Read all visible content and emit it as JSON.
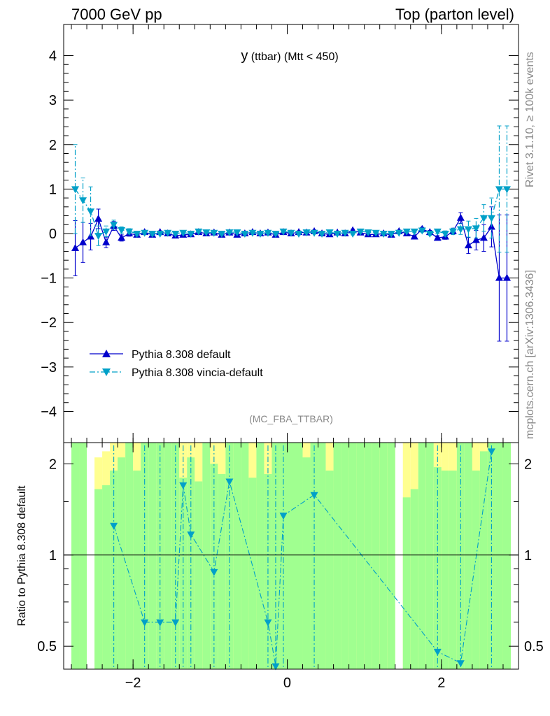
{
  "header": {
    "left": "7000 GeV pp",
    "right": "Top (parton level)"
  },
  "side": {
    "rivet": "Rivet 3.1.10, ≥ 100k events",
    "mcplots": "mcplots.cern.ch [arXiv:1306.3436]"
  },
  "chart_data": [
    {
      "type": "line",
      "title": "y (ttbar) (Mtt < 450)",
      "title_main": "y",
      "title_sub": " (ttbar) (Mtt < 450)",
      "watermark": "(MC_FBA_TTBAR)",
      "xlim": [
        -2.9,
        3.0
      ],
      "ylim": [
        -4.7,
        4.7
      ],
      "x_ticks": [
        -2,
        0,
        2
      ],
      "x_tick_labels": [
        "−2",
        "0",
        "2"
      ],
      "y_ticks": [
        -4,
        -3,
        -2,
        -1,
        0,
        1,
        2,
        3,
        4
      ],
      "y_tick_labels": [
        "−4",
        "−3",
        "−2",
        "−1",
        "0",
        "1",
        "2",
        "3",
        "4"
      ],
      "grid": false,
      "legend_position": "bottom-left",
      "series": [
        {
          "name": "Pythia 8.308 default",
          "color": "#0000cc",
          "marker": "triangle-up",
          "style": "solid",
          "x": [
            -2.75,
            -2.65,
            -2.55,
            -2.45,
            -2.35,
            -2.25,
            -2.15,
            -2.05,
            -1.95,
            -1.85,
            -1.75,
            -1.65,
            -1.55,
            -1.45,
            -1.35,
            -1.25,
            -1.15,
            -1.05,
            -0.95,
            -0.85,
            -0.75,
            -0.65,
            -0.55,
            -0.45,
            -0.35,
            -0.25,
            -0.15,
            -0.05,
            0.05,
            0.15,
            0.25,
            0.35,
            0.45,
            0.55,
            0.65,
            0.75,
            0.85,
            0.95,
            1.05,
            1.15,
            1.25,
            1.35,
            1.45,
            1.55,
            1.65,
            1.75,
            1.85,
            1.95,
            2.05,
            2.15,
            2.25,
            2.35,
            2.45,
            2.55,
            2.65,
            2.75,
            2.85
          ],
          "y": [
            -0.33,
            -0.2,
            -0.07,
            0.33,
            -0.2,
            0.17,
            -0.1,
            0.0,
            -0.03,
            0.03,
            -0.03,
            0.03,
            0.0,
            -0.05,
            -0.03,
            -0.02,
            0.03,
            0.0,
            0.02,
            -0.03,
            0.02,
            -0.03,
            0.0,
            0.03,
            0.0,
            0.02,
            -0.03,
            0.03,
            0.0,
            0.03,
            0.02,
            0.05,
            0.0,
            -0.02,
            0.02,
            0.0,
            0.07,
            0.02,
            -0.02,
            -0.02,
            0.0,
            -0.03,
            0.05,
            0.0,
            -0.07,
            0.1,
            0.03,
            -0.1,
            -0.07,
            0.05,
            0.35,
            -0.27,
            -0.15,
            -0.1,
            0.15,
            -1.0,
            -1.0
          ],
          "yerr": [
            0.62,
            0.45,
            0.3,
            0.22,
            0.12,
            0.1,
            0.07,
            0.06,
            0.05,
            0.04,
            0.04,
            0.03,
            0.03,
            0.03,
            0.03,
            0.03,
            0.03,
            0.03,
            0.03,
            0.03,
            0.03,
            0.03,
            0.03,
            0.03,
            0.03,
            0.03,
            0.03,
            0.03,
            0.03,
            0.03,
            0.03,
            0.03,
            0.03,
            0.03,
            0.03,
            0.03,
            0.03,
            0.03,
            0.03,
            0.03,
            0.03,
            0.03,
            0.03,
            0.03,
            0.03,
            0.04,
            0.04,
            0.05,
            0.06,
            0.07,
            0.12,
            0.18,
            0.22,
            0.3,
            0.45,
            1.42,
            1.42
          ]
        },
        {
          "name": "Pythia 8.308 vincia-default",
          "color": "#00a0c8",
          "marker": "triangle-down",
          "style": "dashdot",
          "x": [
            -2.75,
            -2.65,
            -2.55,
            -2.45,
            -2.35,
            -2.25,
            -2.15,
            -2.05,
            -1.95,
            -1.85,
            -1.75,
            -1.65,
            -1.55,
            -1.45,
            -1.35,
            -1.25,
            -1.15,
            -1.05,
            -0.95,
            -0.85,
            -0.75,
            -0.65,
            -0.55,
            -0.45,
            -0.35,
            -0.25,
            -0.15,
            -0.05,
            0.05,
            0.15,
            0.25,
            0.35,
            0.45,
            0.55,
            0.65,
            0.75,
            0.85,
            0.95,
            1.05,
            1.15,
            1.25,
            1.35,
            1.45,
            1.55,
            1.65,
            1.75,
            1.85,
            1.95,
            2.05,
            2.15,
            2.25,
            2.35,
            2.45,
            2.55,
            2.65,
            2.75,
            2.85
          ],
          "y": [
            1.0,
            0.75,
            0.5,
            -0.05,
            0.05,
            0.2,
            0.08,
            0.05,
            0.0,
            0.02,
            0.0,
            0.0,
            0.02,
            0.0,
            0.02,
            0.0,
            0.05,
            0.03,
            0.02,
            0.0,
            0.03,
            0.03,
            0.0,
            0.02,
            0.0,
            0.02,
            0.0,
            0.05,
            0.02,
            0.0,
            0.03,
            0.02,
            0.0,
            0.03,
            0.0,
            0.02,
            0.0,
            0.05,
            0.03,
            0.02,
            0.0,
            0.0,
            0.02,
            0.05,
            0.05,
            0.07,
            0.0,
            0.05,
            0.0,
            0.05,
            0.1,
            0.1,
            0.12,
            0.35,
            0.35,
            1.0,
            1.0
          ],
          "yerr": [
            1.0,
            0.5,
            0.55,
            0.22,
            0.12,
            0.1,
            0.07,
            0.06,
            0.05,
            0.04,
            0.04,
            0.03,
            0.03,
            0.03,
            0.03,
            0.03,
            0.03,
            0.03,
            0.03,
            0.03,
            0.03,
            0.03,
            0.03,
            0.03,
            0.03,
            0.03,
            0.03,
            0.03,
            0.03,
            0.03,
            0.03,
            0.03,
            0.03,
            0.03,
            0.03,
            0.03,
            0.03,
            0.03,
            0.03,
            0.03,
            0.03,
            0.03,
            0.03,
            0.03,
            0.03,
            0.04,
            0.04,
            0.05,
            0.06,
            0.07,
            0.12,
            0.18,
            0.22,
            0.3,
            0.45,
            1.42,
            1.42
          ]
        }
      ]
    },
    {
      "type": "line",
      "ylabel": "Ratio to Pythia 8.308 default",
      "yscale": "log",
      "xlim": [
        -2.9,
        3.0
      ],
      "ylim": [
        0.42,
        2.35
      ],
      "x_ticks": [
        -2,
        0,
        2
      ],
      "x_tick_labels": [
        "−2",
        "0",
        "2"
      ],
      "y_ticks": [
        0.5,
        1,
        2
      ],
      "y_tick_labels": [
        "0.5",
        "1",
        "2"
      ],
      "reference_line": 1,
      "bands": {
        "stat_color": "#a0ff90",
        "syst_color": "#ffff90",
        "x": [
          -2.75,
          -2.65,
          -2.55,
          -2.45,
          -2.35,
          -2.25,
          -2.15,
          -2.05,
          -1.95,
          -1.85,
          -1.75,
          -1.65,
          -1.55,
          -1.45,
          -1.35,
          -1.25,
          -1.15,
          -1.05,
          -0.95,
          -0.85,
          -0.75,
          -0.65,
          -0.55,
          -0.45,
          -0.35,
          -0.25,
          -0.15,
          -0.05,
          0.05,
          0.15,
          0.25,
          0.35,
          0.45,
          0.55,
          0.65,
          0.75,
          0.85,
          0.95,
          1.05,
          1.15,
          1.25,
          1.35,
          1.45,
          1.55,
          1.65,
          1.75,
          1.85,
          1.95,
          2.05,
          2.15,
          2.25,
          2.35,
          2.45,
          2.55,
          2.65,
          2.75,
          2.85
        ],
        "stat_high": [
          2.35,
          2.35,
          0.0,
          1.65,
          1.7,
          1.9,
          2.1,
          2.35,
          1.9,
          2.35,
          2.35,
          2.35,
          2.35,
          2.35,
          1.8,
          2.1,
          1.75,
          2.35,
          2.0,
          1.85,
          2.35,
          2.35,
          2.35,
          1.8,
          2.35,
          1.85,
          2.35,
          2.35,
          2.35,
          2.35,
          2.1,
          2.35,
          2.35,
          1.9,
          2.35,
          2.35,
          2.35,
          2.35,
          2.35,
          2.35,
          2.35,
          2.35,
          0.0,
          1.55,
          1.65,
          2.35,
          2.35,
          1.95,
          1.9,
          1.9,
          2.35,
          2.35,
          1.9,
          2.2,
          2.35,
          2.35,
          2.35
        ],
        "syst_high": [
          2.35,
          2.35,
          0.0,
          2.1,
          2.2,
          2.35,
          2.35,
          2.35,
          2.35,
          2.35,
          2.35,
          2.35,
          2.35,
          2.35,
          2.35,
          2.35,
          2.35,
          2.35,
          2.35,
          2.35,
          2.35,
          2.35,
          2.35,
          2.35,
          2.35,
          2.35,
          2.35,
          2.35,
          2.35,
          2.35,
          2.35,
          2.35,
          2.35,
          2.35,
          2.35,
          2.35,
          2.35,
          2.35,
          2.35,
          2.35,
          2.35,
          2.35,
          0.0,
          2.35,
          2.35,
          2.35,
          2.35,
          2.35,
          2.35,
          2.35,
          2.35,
          2.35,
          2.35,
          2.35,
          2.35,
          2.35,
          2.35
        ]
      },
      "series": [
        {
          "color": "#00a0c8",
          "marker": "triangle-down",
          "style": "dashdot",
          "x": [
            -2.25,
            -1.85,
            -1.65,
            -1.45,
            -1.35,
            -1.25,
            -0.95,
            -0.75,
            -0.25,
            -0.15,
            -0.05,
            0.35,
            1.95,
            2.25,
            2.65
          ],
          "y": [
            1.25,
            0.6,
            0.6,
            0.6,
            1.7,
            1.17,
            0.88,
            1.75,
            0.6,
            0.43,
            1.35,
            1.58,
            0.48,
            0.44,
            2.2
          ]
        }
      ]
    }
  ]
}
